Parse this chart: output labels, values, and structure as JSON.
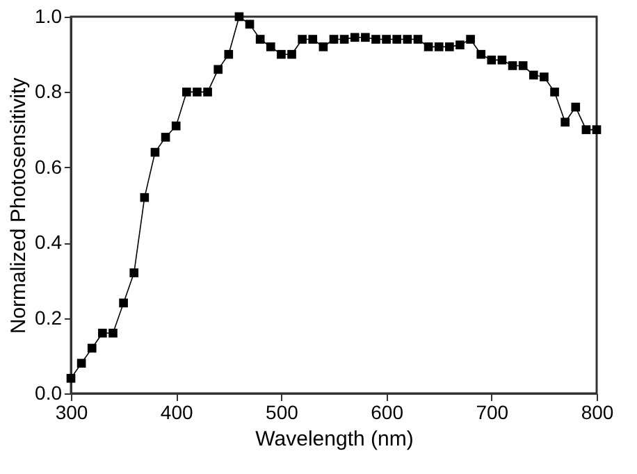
{
  "chart_data": {
    "type": "line",
    "xlabel": "Wavelength (nm)",
    "ylabel": "Normalized Photosensitivity",
    "marker": "square",
    "line_style": "solid",
    "grid": false,
    "xlim": [
      300,
      800
    ],
    "xticks": [
      300,
      400,
      500,
      600,
      700,
      800
    ],
    "ylim": [
      0,
      1.0
    ],
    "yticks": [
      {
        "value": 0,
        "label": "0.0"
      },
      0.2,
      0.4,
      0.6,
      0.8,
      {
        "value": 1,
        "label": "1.0"
      }
    ],
    "x": [
      300,
      310,
      320,
      330,
      340,
      350,
      360,
      370,
      380,
      390,
      400,
      410,
      420,
      430,
      440,
      450,
      460,
      470,
      480,
      490,
      500,
      510,
      520,
      530,
      540,
      550,
      560,
      570,
      580,
      590,
      600,
      610,
      620,
      630,
      640,
      650,
      660,
      670,
      680,
      690,
      700,
      710,
      720,
      730,
      740,
      750,
      760,
      770,
      780,
      790,
      800
    ],
    "series": [
      {
        "color": "#000000",
        "values": [
          0.04,
          0.08,
          0.12,
          0.16,
          0.16,
          0.24,
          0.32,
          0.52,
          0.64,
          0.68,
          0.71,
          0.8,
          0.8,
          0.8,
          0.86,
          0.9,
          1.0,
          0.98,
          0.94,
          0.92,
          0.9,
          0.9,
          0.94,
          0.94,
          0.92,
          0.94,
          0.94,
          0.945,
          0.945,
          0.94,
          0.94,
          0.94,
          0.94,
          0.94,
          0.92,
          0.92,
          0.92,
          0.925,
          0.94,
          0.9,
          0.885,
          0.885,
          0.87,
          0.87,
          0.845,
          0.84,
          0.8,
          0.72,
          0.76,
          0.7,
          0.7
        ]
      }
    ]
  }
}
